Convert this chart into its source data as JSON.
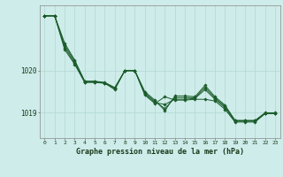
{
  "title": "Graphe pression niveau de la mer (hPa)",
  "bg_color": "#ceecea",
  "grid_color": "#b0d8d4",
  "line_color": "#1a5c2a",
  "x_ticks": [
    0,
    1,
    2,
    3,
    4,
    5,
    6,
    7,
    8,
    9,
    10,
    11,
    12,
    13,
    14,
    15,
    16,
    17,
    18,
    19,
    20,
    21,
    22,
    23
  ],
  "ylim": [
    1018.4,
    1021.55
  ],
  "yticks": [
    1019,
    1020
  ],
  "series": [
    [
      1021.3,
      1021.3,
      1020.65,
      1020.25,
      1019.75,
      1019.75,
      1019.72,
      1019.6,
      1020.0,
      1020.0,
      1019.5,
      1019.3,
      1019.05,
      1019.4,
      1019.4,
      1019.38,
      1019.65,
      1019.38,
      1019.18,
      1018.82,
      1018.82,
      1018.82,
      1019.0,
      1019.0
    ],
    [
      1021.3,
      1021.3,
      1020.5,
      1020.15,
      1019.72,
      1019.72,
      1019.7,
      1019.55,
      1020.0,
      1020.0,
      1019.42,
      1019.22,
      1019.38,
      1019.3,
      1019.3,
      1019.32,
      1019.32,
      1019.28,
      1019.08,
      1018.78,
      1018.78,
      1018.78,
      1018.98,
      1018.98
    ],
    [
      1021.3,
      1021.3,
      1020.55,
      1020.18,
      1019.73,
      1019.73,
      1019.71,
      1019.57,
      1020.0,
      1020.0,
      1019.44,
      1019.24,
      1019.2,
      1019.32,
      1019.32,
      1019.34,
      1019.55,
      1019.32,
      1019.12,
      1018.8,
      1018.8,
      1018.8,
      1018.99,
      1018.99
    ],
    [
      1021.3,
      1021.3,
      1020.6,
      1020.22,
      1019.74,
      1019.74,
      1019.71,
      1019.58,
      1020.0,
      1020.0,
      1019.47,
      1019.27,
      1019.1,
      1019.36,
      1019.36,
      1019.36,
      1019.6,
      1019.35,
      1019.15,
      1018.81,
      1018.81,
      1018.81,
      1018.99,
      1018.99
    ]
  ]
}
